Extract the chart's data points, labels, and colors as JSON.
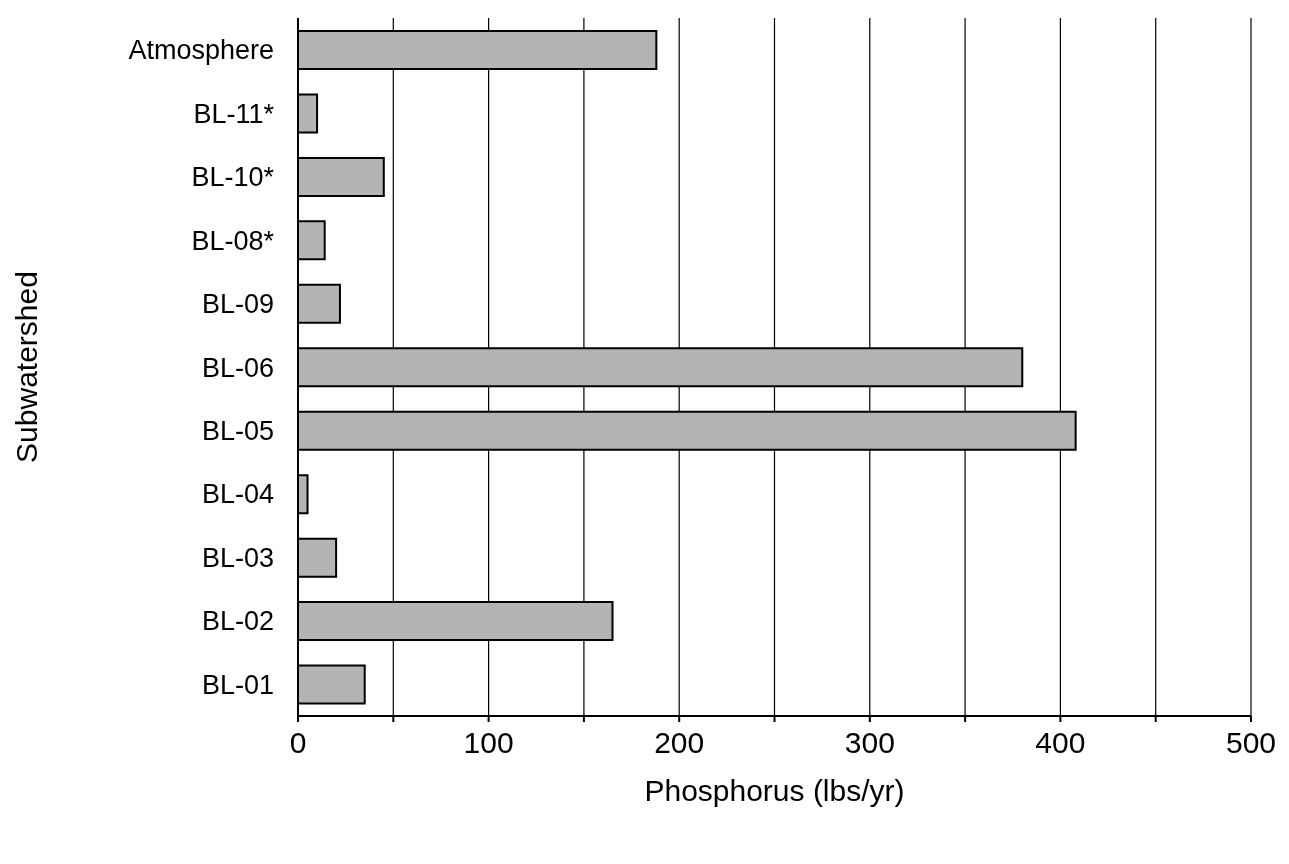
{
  "chart_data": {
    "type": "bar",
    "orientation": "horizontal",
    "xlabel": "Phosphorus (lbs/yr)",
    "ylabel": "Subwatershed",
    "categories": [
      "Atmosphere",
      "BL-11*",
      "BL-10*",
      "BL-08*",
      "BL-09",
      "BL-06",
      "BL-05",
      "BL-04",
      "BL-03",
      "BL-02",
      "BL-01"
    ],
    "values": [
      188,
      10,
      45,
      14,
      22,
      380,
      408,
      5,
      20,
      165,
      35
    ],
    "color": "#b4b4b4",
    "xlim": [
      0,
      500
    ],
    "xticks": [
      0,
      {
        "value": 50,
        "label": null
      },
      100,
      {
        "value": 150,
        "label": null
      },
      200,
      {
        "value": 250,
        "label": null
      },
      300,
      {
        "value": 350,
        "label": null
      },
      400,
      {
        "value": 450,
        "label": null
      },
      500
    ],
    "grid": "x"
  }
}
